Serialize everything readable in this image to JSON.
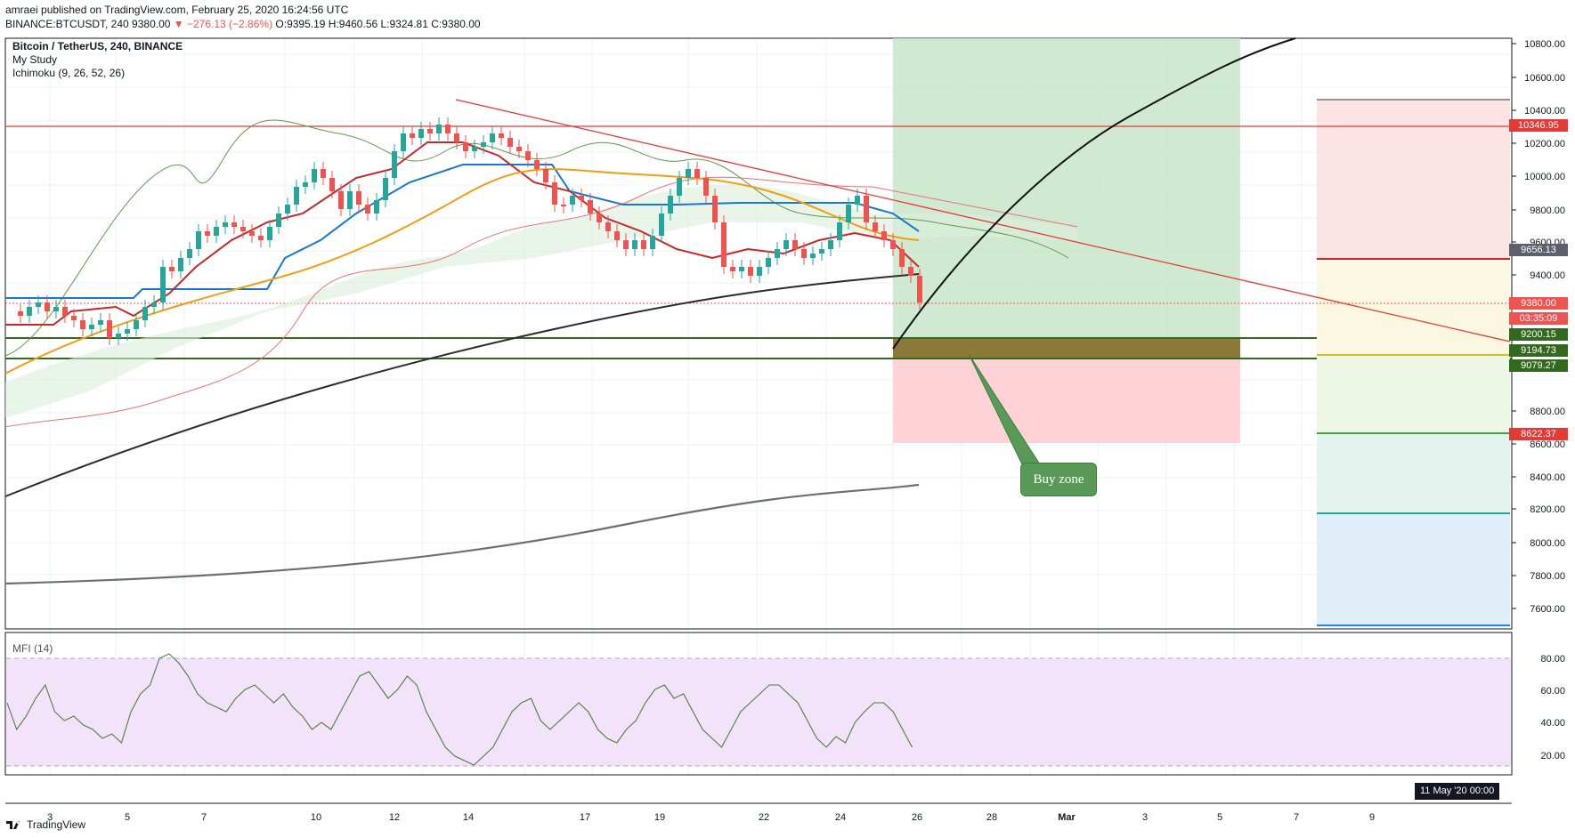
{
  "header": {
    "published": "amraei published on TradingView.com, February 25, 2020 16:24:56 UTC",
    "ticker": "BINANCE:BTCUSDT, 240",
    "price": "9380.00",
    "change": "▼ −276.13 (−2.86%)",
    "ohlc": "O:9395.19 H:9460.56 L:9324.81 C:9380.00"
  },
  "legend": {
    "symbol": "Bitcoin / TetherUS, 240, BINANCE",
    "study": "My Study",
    "ichimoku": "Ichimoku (9, 26, 52, 26)"
  },
  "mfi_label": "MFI (14)",
  "price_axis": [
    "10800.00",
    "10600.00",
    "10400.00",
    "10200.00",
    "10000.00",
    "9800.00",
    "9600.00",
    "9400.00",
    "8800.00",
    "8600.00",
    "8400.00",
    "8200.00",
    "8000.00",
    "7800.00",
    "7600.00"
  ],
  "price_labels": [
    {
      "text": "10346.95",
      "color": "#e53935"
    },
    {
      "text": "9656.13",
      "color": "#5d606b"
    },
    {
      "text": "9380.00",
      "color": "#ef5350"
    },
    {
      "text": "03:35:09",
      "color": "#ef5350"
    },
    {
      "text": "9200.15",
      "color": "#33691e"
    },
    {
      "text": "9194.73",
      "color": "#33691e"
    },
    {
      "text": "9079.27",
      "color": "#33691e"
    },
    {
      "text": "8622.37",
      "color": "#e53935"
    }
  ],
  "mfi_axis": [
    "80.00",
    "60.00",
    "40.00",
    "20.00"
  ],
  "time_axis": [
    "3",
    "5",
    "7",
    "10",
    "12",
    "14",
    "17",
    "19",
    "22",
    "24",
    "26",
    "28",
    "Mar",
    "3",
    "5",
    "7",
    "9"
  ],
  "annotation": "Buy zone",
  "date_box": "11 May '20  00:00",
  "footer": "TradingView"
}
